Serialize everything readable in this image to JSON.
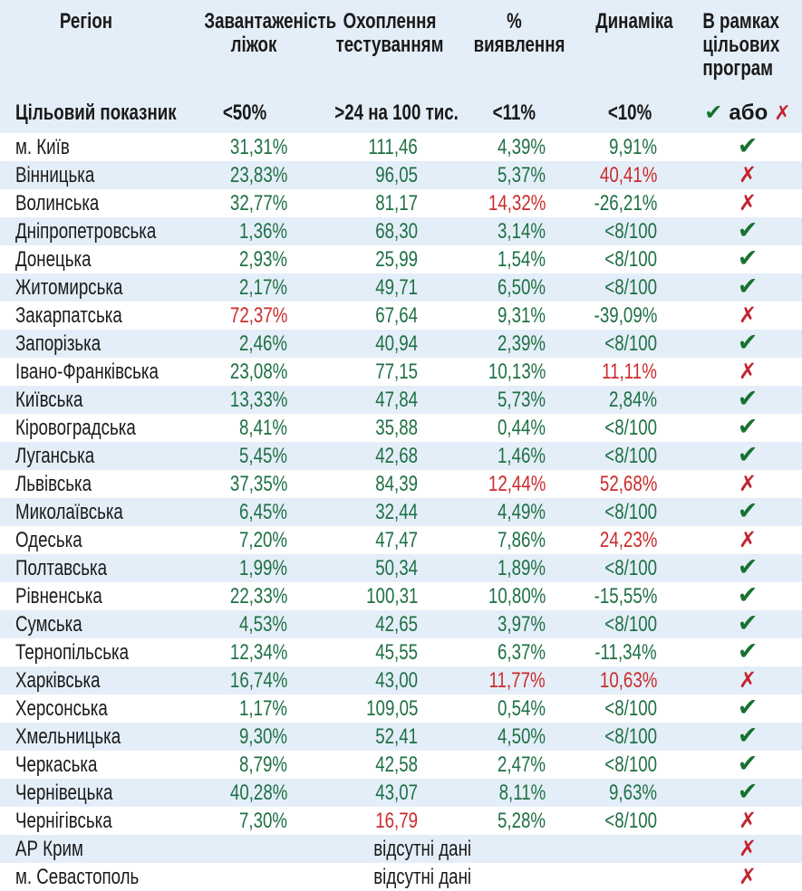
{
  "icons": {
    "check": "✔",
    "cross": "✗"
  },
  "colors": {
    "value_green": "#1e7044",
    "value_red": "#cb2b2b",
    "check_green": "#17722f",
    "cross_red": "#c4232c",
    "row_stripe_blue": "#e4eef8",
    "text_ink": "#1a1a1a"
  },
  "chart_data": {
    "type": "table",
    "columns": [
      {
        "label": "Регіон",
        "lines": [
          "Регіон"
        ]
      },
      {
        "label": "Завантаженість ліжок",
        "lines": [
          "Завантаженість",
          "ліжок"
        ]
      },
      {
        "label": "Охоплення тестуванням",
        "lines": [
          "Охоплення",
          "тестуванням"
        ]
      },
      {
        "label": "% виявлення",
        "lines": [
          "%",
          "виявлення"
        ]
      },
      {
        "label": "Динаміка",
        "lines": [
          "Динаміка"
        ]
      },
      {
        "label": "В рамках цільових програм",
        "lines": [
          "В рамках",
          "цільових",
          "програм"
        ]
      }
    ],
    "target_row": {
      "label": "Цільовий показник",
      "beds": "<50%",
      "testing": ">24 на 100 тис.",
      "detection": "<11%",
      "dynamics": "<10%",
      "or_label": "або"
    },
    "rows": [
      {
        "region": "м. Київ",
        "beds": {
          "v": "31,31%",
          "red": false
        },
        "testing": {
          "v": "111,46",
          "red": false
        },
        "detection": {
          "v": "4,39%",
          "red": false
        },
        "dynamics": {
          "v": "9,91%",
          "red": false
        },
        "status": "check"
      },
      {
        "region": "Вінницька",
        "beds": {
          "v": "23,83%",
          "red": false
        },
        "testing": {
          "v": "96,05",
          "red": false
        },
        "detection": {
          "v": "5,37%",
          "red": false
        },
        "dynamics": {
          "v": "40,41%",
          "red": true
        },
        "status": "cross"
      },
      {
        "region": "Волинська",
        "beds": {
          "v": "32,77%",
          "red": false
        },
        "testing": {
          "v": "81,17",
          "red": false
        },
        "detection": {
          "v": "14,32%",
          "red": true
        },
        "dynamics": {
          "v": "-26,21%",
          "red": false
        },
        "status": "cross"
      },
      {
        "region": "Дніпропетровська",
        "beds": {
          "v": "1,36%",
          "red": false
        },
        "testing": {
          "v": "68,30",
          "red": false
        },
        "detection": {
          "v": "3,14%",
          "red": false
        },
        "dynamics": {
          "v": "<8/100",
          "red": false
        },
        "status": "check"
      },
      {
        "region": "Донецька",
        "beds": {
          "v": "2,93%",
          "red": false
        },
        "testing": {
          "v": "25,99",
          "red": false
        },
        "detection": {
          "v": "1,54%",
          "red": false
        },
        "dynamics": {
          "v": "<8/100",
          "red": false
        },
        "status": "check"
      },
      {
        "region": "Житомирська",
        "beds": {
          "v": "2,17%",
          "red": false
        },
        "testing": {
          "v": "49,71",
          "red": false
        },
        "detection": {
          "v": "6,50%",
          "red": false
        },
        "dynamics": {
          "v": "<8/100",
          "red": false
        },
        "status": "check"
      },
      {
        "region": "Закарпатська",
        "beds": {
          "v": "72,37%",
          "red": true
        },
        "testing": {
          "v": "67,64",
          "red": false
        },
        "detection": {
          "v": "9,31%",
          "red": false
        },
        "dynamics": {
          "v": "-39,09%",
          "red": false
        },
        "status": "cross"
      },
      {
        "region": "Запорізька",
        "beds": {
          "v": "2,46%",
          "red": false
        },
        "testing": {
          "v": "40,94",
          "red": false
        },
        "detection": {
          "v": "2,39%",
          "red": false
        },
        "dynamics": {
          "v": "<8/100",
          "red": false
        },
        "status": "check"
      },
      {
        "region": "Івано-Франківська",
        "beds": {
          "v": "23,08%",
          "red": false
        },
        "testing": {
          "v": "77,15",
          "red": false
        },
        "detection": {
          "v": "10,13%",
          "red": false
        },
        "dynamics": {
          "v": "11,11%",
          "red": true
        },
        "status": "cross"
      },
      {
        "region": "Київська",
        "beds": {
          "v": "13,33%",
          "red": false
        },
        "testing": {
          "v": "47,84",
          "red": false
        },
        "detection": {
          "v": "5,73%",
          "red": false
        },
        "dynamics": {
          "v": "2,84%",
          "red": false
        },
        "status": "check"
      },
      {
        "region": "Кіровоградська",
        "beds": {
          "v": "8,41%",
          "red": false
        },
        "testing": {
          "v": "35,88",
          "red": false
        },
        "detection": {
          "v": "0,44%",
          "red": false
        },
        "dynamics": {
          "v": "<8/100",
          "red": false
        },
        "status": "check"
      },
      {
        "region": "Луганська",
        "beds": {
          "v": "5,45%",
          "red": false
        },
        "testing": {
          "v": "42,68",
          "red": false
        },
        "detection": {
          "v": "1,46%",
          "red": false
        },
        "dynamics": {
          "v": "<8/100",
          "red": false
        },
        "status": "check"
      },
      {
        "region": "Львівська",
        "beds": {
          "v": "37,35%",
          "red": false
        },
        "testing": {
          "v": "84,39",
          "red": false
        },
        "detection": {
          "v": "12,44%",
          "red": true
        },
        "dynamics": {
          "v": "52,68%",
          "red": true
        },
        "status": "cross"
      },
      {
        "region": "Миколаївська",
        "beds": {
          "v": "6,45%",
          "red": false
        },
        "testing": {
          "v": "32,44",
          "red": false
        },
        "detection": {
          "v": "4,49%",
          "red": false
        },
        "dynamics": {
          "v": "<8/100",
          "red": false
        },
        "status": "check"
      },
      {
        "region": "Одеська",
        "beds": {
          "v": "7,20%",
          "red": false
        },
        "testing": {
          "v": "47,47",
          "red": false
        },
        "detection": {
          "v": "7,86%",
          "red": false
        },
        "dynamics": {
          "v": "24,23%",
          "red": true
        },
        "status": "cross"
      },
      {
        "region": "Полтавська",
        "beds": {
          "v": "1,99%",
          "red": false
        },
        "testing": {
          "v": "50,34",
          "red": false
        },
        "detection": {
          "v": "1,89%",
          "red": false
        },
        "dynamics": {
          "v": "<8/100",
          "red": false
        },
        "status": "check"
      },
      {
        "region": "Рівненська",
        "beds": {
          "v": "22,33%",
          "red": false
        },
        "testing": {
          "v": "100,31",
          "red": false
        },
        "detection": {
          "v": "10,80%",
          "red": false
        },
        "dynamics": {
          "v": "-15,55%",
          "red": false
        },
        "status": "check"
      },
      {
        "region": "Сумська",
        "beds": {
          "v": "4,53%",
          "red": false
        },
        "testing": {
          "v": "42,65",
          "red": false
        },
        "detection": {
          "v": "3,97%",
          "red": false
        },
        "dynamics": {
          "v": "<8/100",
          "red": false
        },
        "status": "check"
      },
      {
        "region": "Тернопільська",
        "beds": {
          "v": "12,34%",
          "red": false
        },
        "testing": {
          "v": "45,55",
          "red": false
        },
        "detection": {
          "v": "6,37%",
          "red": false
        },
        "dynamics": {
          "v": "-11,34%",
          "red": false
        },
        "status": "check"
      },
      {
        "region": "Харківська",
        "beds": {
          "v": "16,74%",
          "red": false
        },
        "testing": {
          "v": "43,00",
          "red": false
        },
        "detection": {
          "v": "11,77%",
          "red": true
        },
        "dynamics": {
          "v": "10,63%",
          "red": true
        },
        "status": "cross"
      },
      {
        "region": "Херсонська",
        "beds": {
          "v": "1,17%",
          "red": false
        },
        "testing": {
          "v": "109,05",
          "red": false
        },
        "detection": {
          "v": "0,54%",
          "red": false
        },
        "dynamics": {
          "v": "<8/100",
          "red": false
        },
        "status": "check"
      },
      {
        "region": "Хмельницька",
        "beds": {
          "v": "9,30%",
          "red": false
        },
        "testing": {
          "v": "52,41",
          "red": false
        },
        "detection": {
          "v": "4,50%",
          "red": false
        },
        "dynamics": {
          "v": "<8/100",
          "red": false
        },
        "status": "check"
      },
      {
        "region": "Черкаська",
        "beds": {
          "v": "8,79%",
          "red": false
        },
        "testing": {
          "v": "42,58",
          "red": false
        },
        "detection": {
          "v": "2,47%",
          "red": false
        },
        "dynamics": {
          "v": "<8/100",
          "red": false
        },
        "status": "check"
      },
      {
        "region": "Чернівецька",
        "beds": {
          "v": "40,28%",
          "red": false
        },
        "testing": {
          "v": "43,07",
          "red": false
        },
        "detection": {
          "v": "8,11%",
          "red": false
        },
        "dynamics": {
          "v": "9,63%",
          "red": false
        },
        "status": "check"
      },
      {
        "region": "Чернігівська",
        "beds": {
          "v": "7,30%",
          "red": false
        },
        "testing": {
          "v": "16,79",
          "red": true
        },
        "detection": {
          "v": "5,28%",
          "red": false
        },
        "dynamics": {
          "v": "<8/100",
          "red": false
        },
        "status": "cross"
      },
      {
        "region": "АР Крим",
        "nodata": "відсутні дані",
        "status": "cross"
      },
      {
        "region": "м. Севастополь",
        "nodata": "відсутні дані",
        "status": "cross"
      }
    ]
  }
}
